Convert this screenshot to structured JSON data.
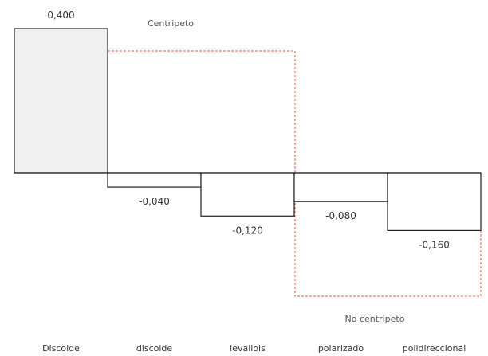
{
  "chart_data": {
    "type": "bar",
    "categories": [
      "Discoide",
      "discoide",
      "levallois",
      "polarizado",
      "polidireccional"
    ],
    "values": [
      0.4,
      -0.04,
      -0.12,
      -0.08,
      -0.16
    ],
    "value_labels": [
      "0,400",
      "-0,040",
      "-0,120",
      "-0,080",
      "-0,160"
    ],
    "ylim": [
      -0.2,
      0.4
    ],
    "grid": false,
    "annotations": {
      "top": "Centripeto",
      "bottom": "No centripeto"
    },
    "colors": {
      "first_bar_fill": "#f0f0f0",
      "bar_fill": "#ffffff",
      "bar_stroke": "#222222",
      "group_box": "#e8553f"
    }
  }
}
